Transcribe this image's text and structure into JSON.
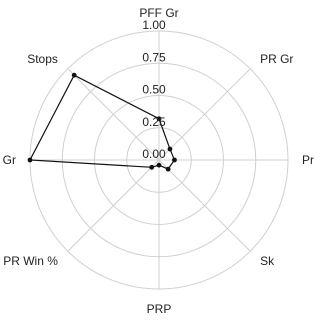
{
  "chart_data": {
    "type": "radar",
    "axes": [
      "PFF Gr",
      "PR Gr",
      "Pr",
      "Sk",
      "PRP",
      "PR Win %",
      "RD Gr",
      "Stops"
    ],
    "radial_ticks": [
      "0.00",
      "0.25",
      "0.50",
      "0.75",
      "1.00"
    ],
    "rlim": [
      0,
      1
    ],
    "grid": true,
    "series": [
      {
        "values": [
          0.32,
          0.12,
          0.12,
          0.1,
          0.04,
          0.08,
          1.0,
          0.93
        ]
      }
    ],
    "colors": {
      "line": "#111111",
      "grid": "#d0d0d0",
      "text": "#222222"
    }
  }
}
